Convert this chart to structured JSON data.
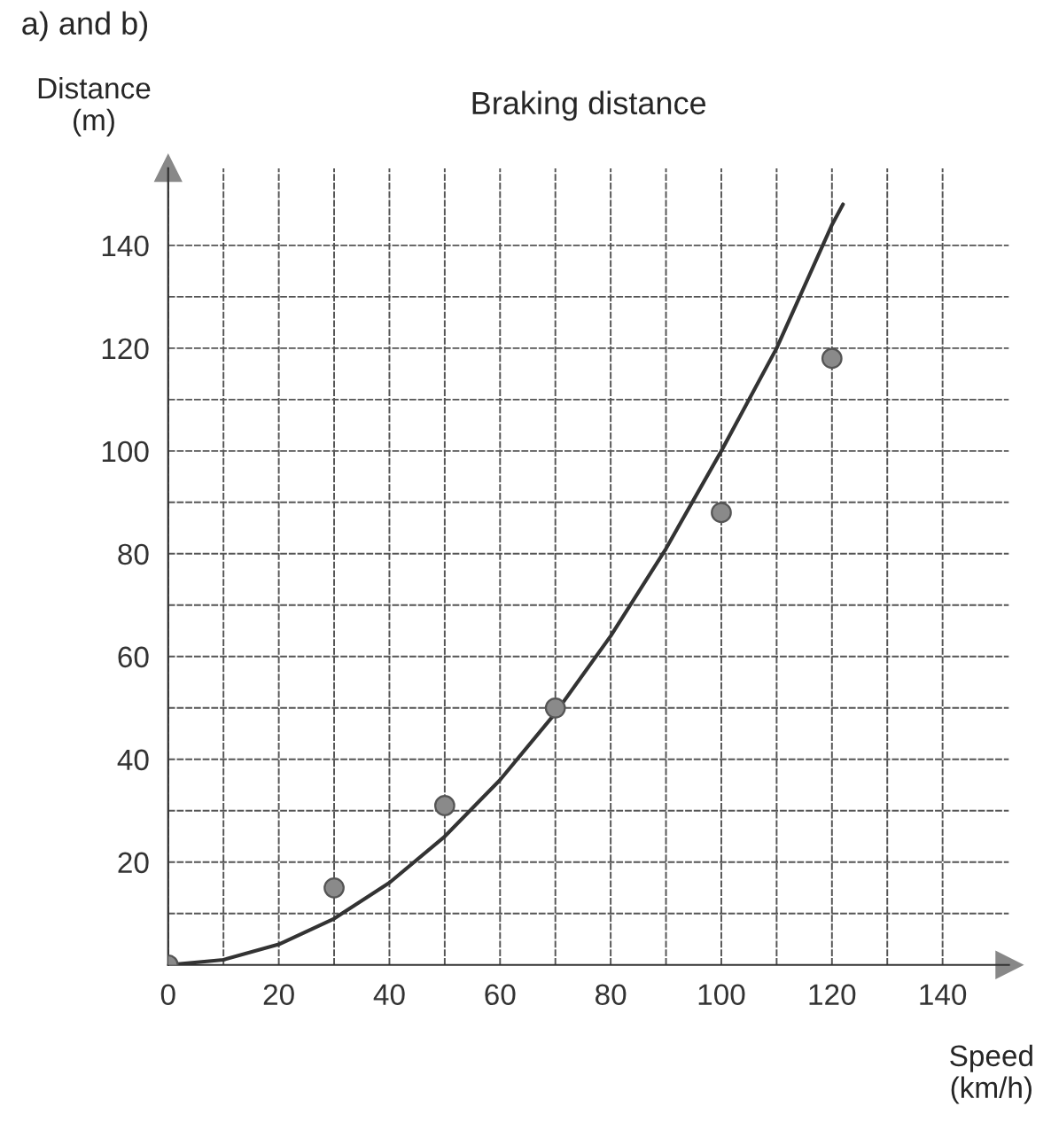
{
  "chart_data": {
    "type": "scatter",
    "title": "Braking distance",
    "xlabel": "Speed\n(km/h)",
    "ylabel": "Distance\n(m)",
    "annotations": [
      "a) and b)"
    ],
    "series": [
      {
        "color": "#8a8a8a",
        "x": [
          0,
          30,
          50,
          70,
          100,
          120
        ],
        "values": [
          0,
          15,
          31,
          50,
          88,
          118
        ],
        "marker": "circle"
      },
      {
        "type": "line",
        "color": "#333333",
        "x": [
          0,
          10,
          20,
          30,
          40,
          50,
          60,
          70,
          80,
          90,
          100,
          110,
          120,
          122
        ],
        "values": [
          0,
          1,
          4,
          9,
          16,
          25,
          36,
          49,
          64,
          81,
          100,
          120,
          144,
          148
        ],
        "marker": "none",
        "line_style": "solid"
      }
    ],
    "xlim": [
      0,
      152
    ],
    "ylim": [
      0,
      155
    ],
    "xticks": [
      0,
      {
        "value": 10,
        "label": null
      },
      20,
      {
        "value": 30,
        "label": null
      },
      40,
      {
        "value": 50,
        "label": null
      },
      60,
      {
        "value": 70,
        "label": null
      },
      80,
      {
        "value": 90,
        "label": null
      },
      100,
      {
        "value": 110,
        "label": null
      },
      120,
      {
        "value": 130,
        "label": null
      },
      140
    ],
    "yticks": [
      {
        "value": 10,
        "label": null
      },
      20,
      {
        "value": 30,
        "label": null
      },
      40,
      {
        "value": 50,
        "label": null
      },
      60,
      {
        "value": 70,
        "label": null
      },
      80,
      {
        "value": 90,
        "label": null
      },
      100,
      {
        "value": 110,
        "label": null
      },
      120,
      {
        "value": 130,
        "label": null
      },
      140
    ],
    "grid": true,
    "legend": false
  }
}
